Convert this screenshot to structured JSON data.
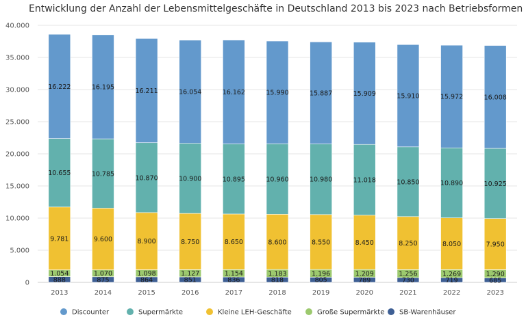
{
  "chart_data": {
    "type": "bar",
    "stacked": true,
    "title": "Entwicklung der Anzahl der Lebensmittelgeschäfte in Deutschland 2013 bis 2023 nach Betriebsformen",
    "xlabel": "",
    "ylabel": "",
    "ylim": [
      0,
      40000
    ],
    "yticks": [
      0,
      5000,
      10000,
      15000,
      20000,
      25000,
      30000,
      35000,
      40000
    ],
    "ytick_labels": [
      "0",
      "5.000",
      "10.000",
      "15.000",
      "20.000",
      "25.000",
      "30.000",
      "35.000",
      "40.000"
    ],
    "grid": true,
    "legend_position": "bottom",
    "categories": [
      "2013",
      "2014",
      "2015",
      "2016",
      "2017",
      "2018",
      "2019",
      "2020",
      "2021",
      "2022",
      "2023"
    ],
    "series": [
      {
        "name": "SB-Warenhäuser",
        "color": "#3e5f94",
        "values": [
          888,
          875,
          864,
          851,
          836,
          818,
          805,
          789,
          730,
          719,
          685
        ],
        "labels": [
          "888",
          "875",
          "864",
          "851",
          "836",
          "818",
          "805",
          "789",
          "730",
          "719",
          "685"
        ]
      },
      {
        "name": "Große Supermärkte",
        "color": "#9cc96e",
        "values": [
          1054,
          1070,
          1098,
          1127,
          1154,
          1183,
          1196,
          1209,
          1256,
          1269,
          1290
        ],
        "labels": [
          "1.054",
          "1.070",
          "1.098",
          "1.127",
          "1.154",
          "1.183",
          "1.196",
          "1.209",
          "1.256",
          "1.269",
          "1.290"
        ]
      },
      {
        "name": "Kleine LEH-Geschäfte",
        "color": "#f0c132",
        "values": [
          9781,
          9600,
          8900,
          8750,
          8650,
          8600,
          8550,
          8450,
          8250,
          8050,
          7950
        ],
        "labels": [
          "9.781",
          "9.600",
          "8.900",
          "8.750",
          "8.650",
          "8.600",
          "8.550",
          "8.450",
          "8.250",
          "8.050",
          "7.950"
        ]
      },
      {
        "name": "Supermärkte",
        "color": "#62b1ad",
        "values": [
          10655,
          10785,
          10870,
          10900,
          10895,
          10960,
          10980,
          11018,
          10850,
          10890,
          10925
        ],
        "labels": [
          "10.655",
          "10.785",
          "10.870",
          "10.900",
          "10.895",
          "10.960",
          "10.980",
          "11.018",
          "10.850",
          "10.890",
          "10.925"
        ]
      },
      {
        "name": "Discounter",
        "color": "#6399cc",
        "values": [
          16222,
          16195,
          16211,
          16054,
          16162,
          15990,
          15887,
          15909,
          15910,
          15972,
          16008
        ],
        "labels": [
          "16.222",
          "16.195",
          "16.211",
          "16.054",
          "16.162",
          "15.990",
          "15.887",
          "15.909",
          "15.910",
          "15.972",
          "16.008"
        ]
      }
    ],
    "legend_order": [
      "Discounter",
      "Supermärkte",
      "Kleine LEH-Geschäfte",
      "Große Supermärkte",
      "SB-Warenhäuser"
    ]
  }
}
